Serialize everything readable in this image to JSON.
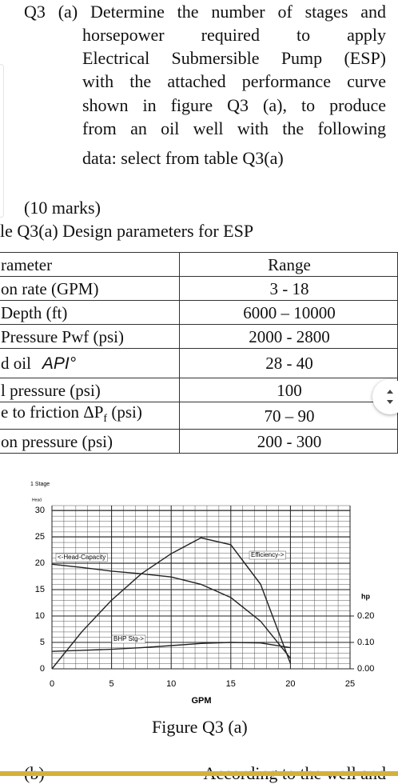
{
  "question": {
    "first_line": "Q3 (a) Determine the number of stages and",
    "lines": [
      "horsepower required to apply",
      "Electrical Submersible Pump (ESP)",
      "with the attached performance curve",
      "shown in figure Q3 (a), to produce",
      "from an oil well with the following"
    ],
    "last_line": "data: select from table Q3(a)",
    "marks": "(10 marks)"
  },
  "table": {
    "caption": "le Q3(a) Design parameters for ESP",
    "header": [
      "rameter",
      "Range"
    ],
    "rows": [
      [
        [
          "on rate (GPM)"
        ],
        "3  - 18"
      ],
      [
        [
          " Depth (ft)"
        ],
        "6000 – 10000"
      ],
      [
        [
          "Pressure Pwf   (psi)"
        ],
        "2000 - 2800"
      ],
      [
        [
          "d oil",
          "API°"
        ],
        "28 - 40"
      ],
      [
        [
          "l pressure (psi)"
        ],
        "100"
      ],
      [
        [
          "e to friction ΔP",
          "f",
          " (psi)"
        ],
        "70 – 90"
      ],
      [
        [
          "on pressure (psi)"
        ],
        "200 - 300"
      ]
    ]
  },
  "figure": {
    "type": "line",
    "stage_label": "1 Stage",
    "y_label": "Head",
    "y2_label": "hp",
    "x_label": "GPM",
    "caption": "Figure Q3 (a)",
    "xlim": [
      0,
      25
    ],
    "xticks": [
      0,
      5,
      10,
      15,
      20,
      25
    ],
    "ylim": [
      0,
      30
    ],
    "yticks": [
      0,
      5,
      10,
      15,
      20,
      25,
      30
    ],
    "y2lim": [
      0,
      0.6
    ],
    "y2ticks": [
      {
        "value": 0,
        "label": "0.00"
      },
      {
        "value": 0.1,
        "label": "0.10"
      },
      {
        "value": 0.2,
        "label": "0.20"
      }
    ],
    "grid": true,
    "x": [
      0,
      2.5,
      5,
      7.5,
      10,
      12.5,
      15,
      17.5,
      20
    ],
    "series": [
      {
        "name": "<-Head-Capacity",
        "color": "#222",
        "values": [
          19.8,
          19.2,
          18.5,
          18,
          17.4,
          16,
          13.5,
          9,
          2
        ]
      },
      {
        "name": "Efficiency->",
        "color": "#222",
        "values": [
          0,
          7,
          13,
          18,
          21.8,
          24.8,
          23.5,
          16,
          1
        ]
      },
      {
        "name": "BHP Stg->",
        "color": "#222",
        "axis": "y2",
        "values": [
          0.066,
          0.07,
          0.074,
          0.08,
          0.088,
          0.096,
          0.1,
          0.098,
          0.08
        ]
      }
    ]
  },
  "next": {
    "label": "(b)",
    "text": "According to the well and"
  }
}
